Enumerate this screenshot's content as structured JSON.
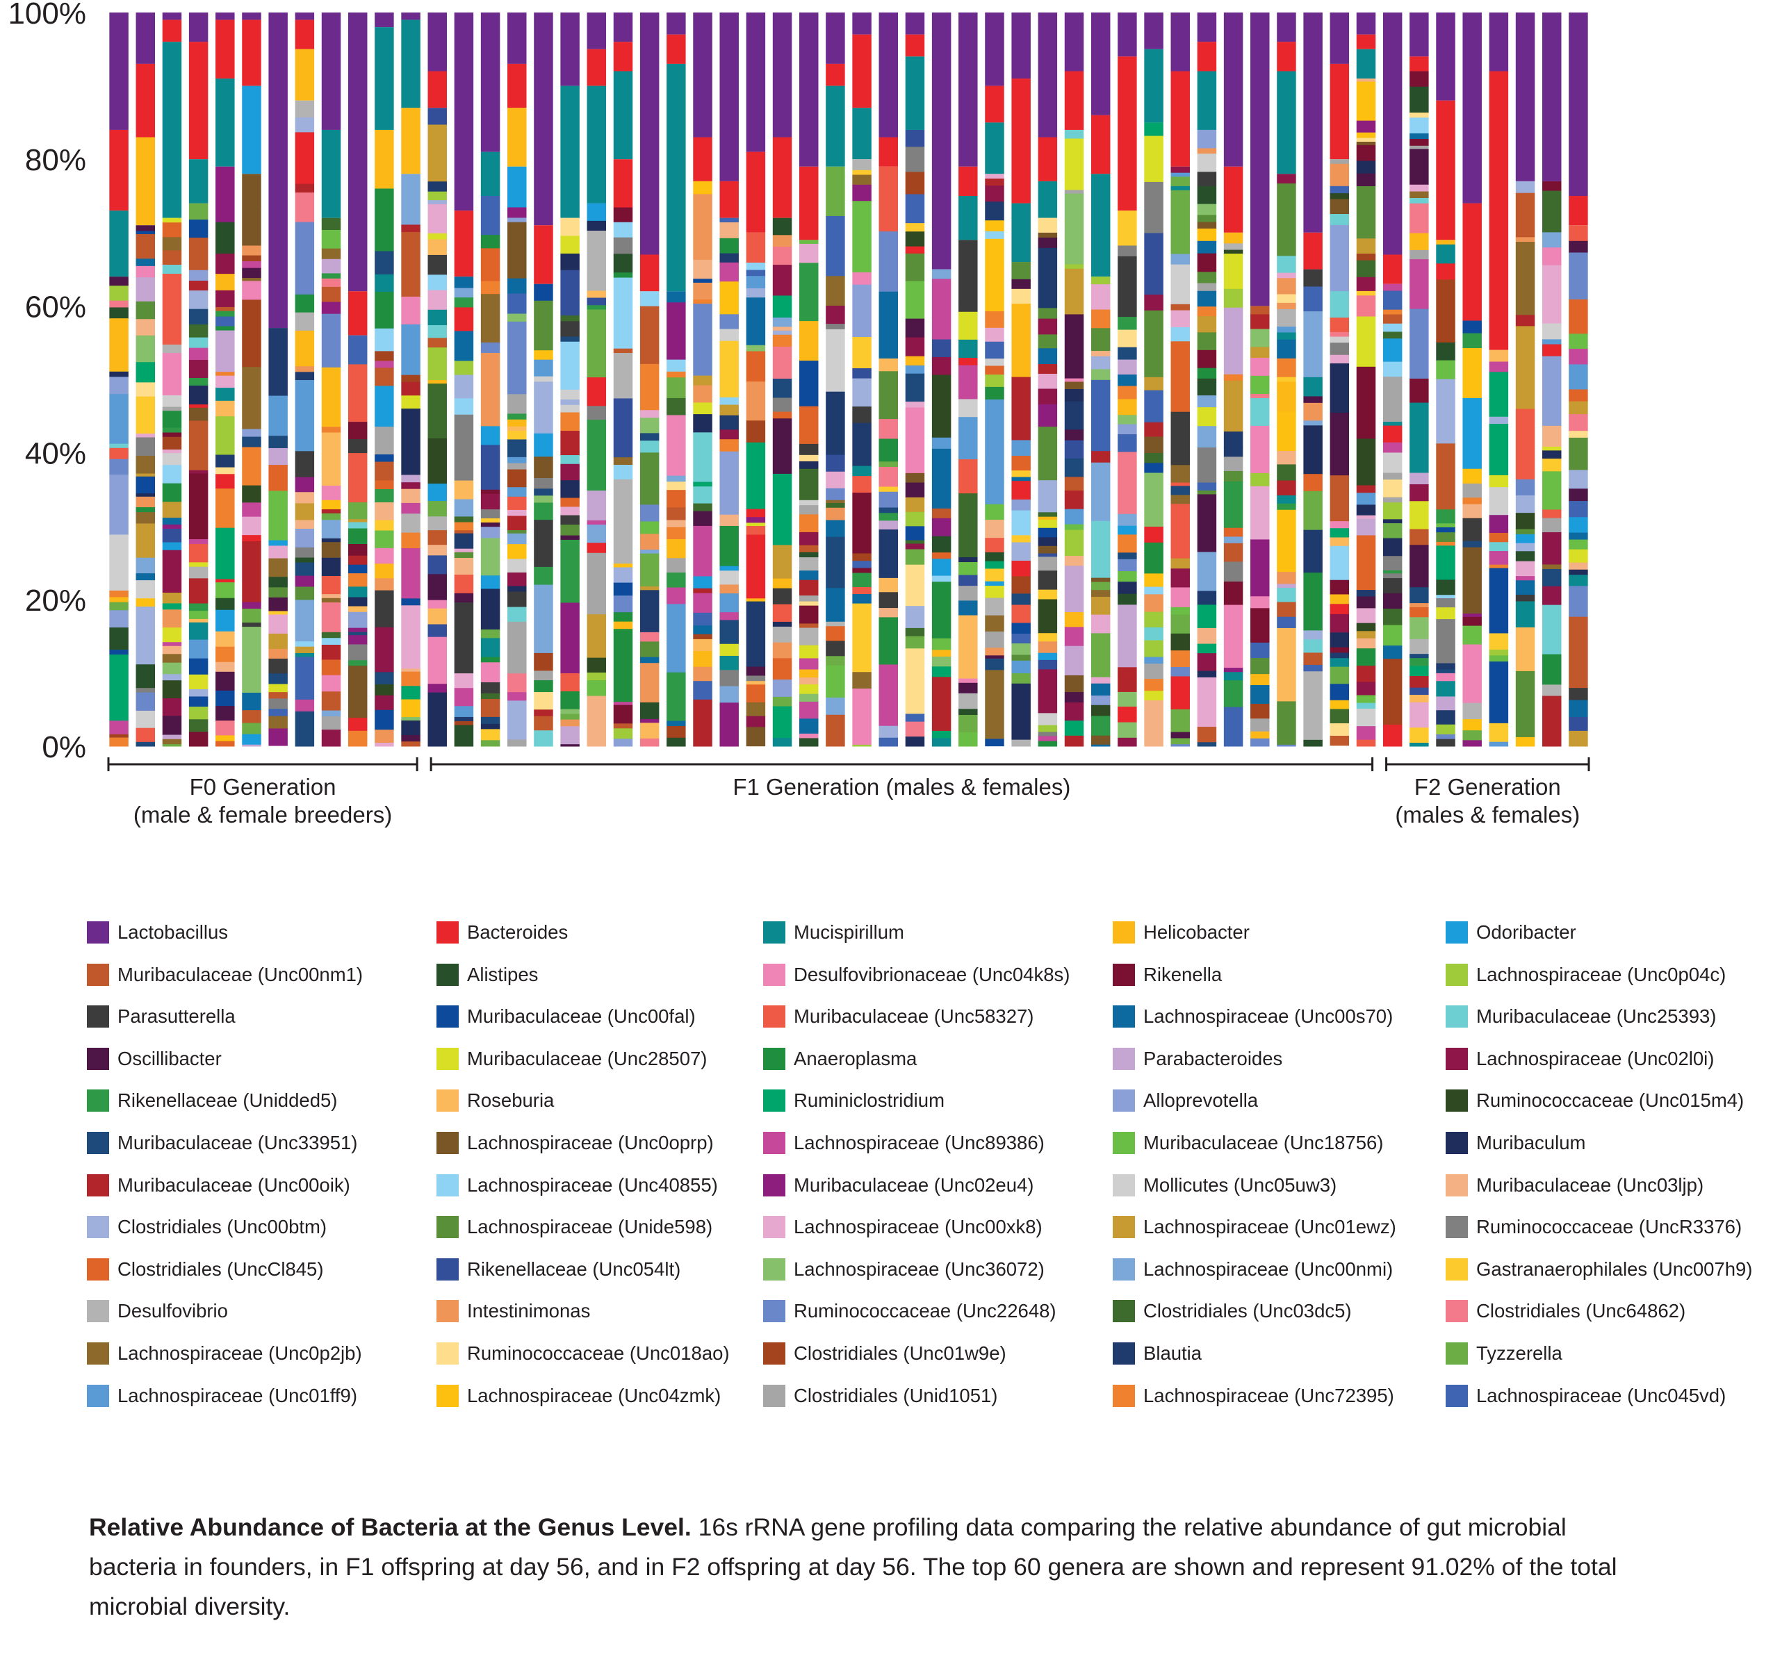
{
  "chart_data": {
    "type": "bar",
    "stacked": true,
    "title": "Relative Abundance of Bacteria at the Genus Level.",
    "xlabel": "",
    "ylabel": "",
    "ylim": [
      0,
      100
    ],
    "y_ticks": [
      "0%",
      "20%",
      "40%",
      "60%",
      "80%",
      "100%"
    ],
    "groups": [
      {
        "line1": "F0 Generation",
        "line2": "(male & female breeders)",
        "n_samples": 12
      },
      {
        "line1": "F1 Generation (males & females)",
        "line2": "",
        "n_samples": 36
      },
      {
        "line1": "F2 Generation",
        "line2": "(males & females)",
        "n_samples": 8
      }
    ],
    "n_samples": 56,
    "series": [
      {
        "name": "Lactobacillus",
        "color": "#6c2a8c"
      },
      {
        "name": "Bacteroides",
        "color": "#e8262b"
      },
      {
        "name": "Mucispirillum",
        "color": "#0a8a8e"
      },
      {
        "name": "Helicobacter",
        "color": "#fbb816"
      },
      {
        "name": "Odoribacter",
        "color": "#1b9ddb"
      },
      {
        "name": "Muribaculaceae (Unc00nm1)",
        "color": "#c0582b"
      },
      {
        "name": "Alistipes",
        "color": "#264f2a"
      },
      {
        "name": "Desulfovibrionaceae (Unc04k8s)",
        "color": "#ef84b6"
      },
      {
        "name": "Rikenella",
        "color": "#7a1032"
      },
      {
        "name": "Lachnospiraceae (Unc0p04c)",
        "color": "#9fcb3b"
      },
      {
        "name": "Parasutterella",
        "color": "#3c3c3c"
      },
      {
        "name": "Muribaculaceae (Unc00fal)",
        "color": "#0e4a9c"
      },
      {
        "name": "Muribaculaceae (Unc58327)",
        "color": "#ee5a45"
      },
      {
        "name": "Lachnospiraceae (Unc00s70)",
        "color": "#0c6aa1"
      },
      {
        "name": "Muribaculaceae (Unc25393)",
        "color": "#6ecfd2"
      },
      {
        "name": "Oscillibacter",
        "color": "#4e1547"
      },
      {
        "name": "Muribaculaceae (Unc28507)",
        "color": "#d9df24"
      },
      {
        "name": "Anaeroplasma",
        "color": "#1f8e3e"
      },
      {
        "name": "Parabacteroides",
        "color": "#c5a6d2"
      },
      {
        "name": "Lachnospiraceae (Unc02l0i)",
        "color": "#8e1648"
      },
      {
        "name": "Rikenellaceae (Unidded5)",
        "color": "#2e9a47"
      },
      {
        "name": "Roseburia",
        "color": "#fbb95c"
      },
      {
        "name": "Ruminiclostridium",
        "color": "#00a56b"
      },
      {
        "name": "Alloprevotella",
        "color": "#8aa0d6"
      },
      {
        "name": "Ruminococcaceae (Unc015m4)",
        "color": "#2f4a22"
      },
      {
        "name": "Muribaculaceae (Unc33951)",
        "color": "#1d4a7a"
      },
      {
        "name": "Lachnospiraceae (Unc0oprp)",
        "color": "#7a5626"
      },
      {
        "name": "Lachnospiraceae (Unc89386)",
        "color": "#c5489b"
      },
      {
        "name": "Muribaculaceae (Unc18756)",
        "color": "#6abd45"
      },
      {
        "name": "Muribaculum",
        "color": "#1f2d5c"
      },
      {
        "name": "Muribaculaceae (Unc00oik)",
        "color": "#b2252a"
      },
      {
        "name": "Lachnospiraceae (Unc40855)",
        "color": "#8fd3f4"
      },
      {
        "name": "Muribaculaceae (Unc02eu4)",
        "color": "#8e1e7e"
      },
      {
        "name": "Mollicutes (Unc05uw3)",
        "color": "#cfcfcf"
      },
      {
        "name": "Muribaculaceae (Unc03ljp)",
        "color": "#f4b183"
      },
      {
        "name": "Clostridiales (Unc00btm)",
        "color": "#9fb0dc"
      },
      {
        "name": "Lachnospiraceae (Unide598)",
        "color": "#5a8f3a"
      },
      {
        "name": "Lachnospiraceae (Unc00xk8)",
        "color": "#e7a8cf"
      },
      {
        "name": "Lachnospiraceae (Unc01ewz)",
        "color": "#c79a32"
      },
      {
        "name": "Ruminococcaceae (UncR3376)",
        "color": "#808080"
      },
      {
        "name": "Clostridiales (UncCl845)",
        "color": "#e06428"
      },
      {
        "name": "Rikenellaceae (Unc054lt)",
        "color": "#344f9a"
      },
      {
        "name": "Lachnospiraceae (Unc36072)",
        "color": "#86c06a"
      },
      {
        "name": "Lachnospiraceae (Unc00nmi)",
        "color": "#7ba7d9"
      },
      {
        "name": "Gastranaerophilales (Unc007h9)",
        "color": "#fdca2e"
      },
      {
        "name": "Desulfovibrio",
        "color": "#b3b3b3"
      },
      {
        "name": "Intestinimonas",
        "color": "#f09558"
      },
      {
        "name": "Ruminococcaceae (Unc22648)",
        "color": "#6a88c9"
      },
      {
        "name": "Clostridiales (Unc03dc5)",
        "color": "#3d6b2d"
      },
      {
        "name": "Clostridiales (Unc64862)",
        "color": "#f27a8a"
      },
      {
        "name": "Lachnospiraceae (Unc0p2jb)",
        "color": "#8d6a2c"
      },
      {
        "name": "Ruminococcaceae (Unc018ao)",
        "color": "#fedd8c"
      },
      {
        "name": "Clostridiales (Unc01w9e)",
        "color": "#a3441e"
      },
      {
        "name": "Blautia",
        "color": "#1f3a6c"
      },
      {
        "name": "Tyzzerella",
        "color": "#6cae45"
      },
      {
        "name": "Lachnospiraceae (Unc01ff9)",
        "color": "#5b9bd5"
      },
      {
        "name": "Lachnospiraceae (Unc04zmk)",
        "color": "#fec010"
      },
      {
        "name": "Clostridiales (Unid1051)",
        "color": "#a6a6a6"
      },
      {
        "name": "Lachnospiraceae (Unc72395)",
        "color": "#f0812f"
      },
      {
        "name": "Lachnospiraceae (Unc045vd)",
        "color": "#3f64b1"
      }
    ],
    "dominant_top_segments": [
      {
        "sample": 1,
        "Lactobacillus": 16,
        "Bacteroides": 11,
        "Mucispirillum": 9
      },
      {
        "sample": 2,
        "Lactobacillus": 7,
        "Bacteroides": 10,
        "Helicobacter": 12
      },
      {
        "sample": 3,
        "Lactobacillus": 1,
        "Bacteroides": 3,
        "Mucispirillum": 24
      },
      {
        "sample": 4,
        "Lactobacillus": 4,
        "Bacteroides": 16,
        "Mucispirillum": 6
      },
      {
        "sample": 5,
        "Lactobacillus": 1,
        "Bacteroides": 8,
        "Mucispirillum": 12
      },
      {
        "sample": 6,
        "Lactobacillus": 1,
        "Bacteroides": 9,
        "Odoribacter": 12
      },
      {
        "sample": 7,
        "Lactobacillus": 43
      },
      {
        "sample": 8,
        "Lactobacillus": 1,
        "Bacteroides": 4,
        "Helicobacter": 7
      },
      {
        "sample": 9,
        "Lactobacillus": 16,
        "Mucispirillum": 12
      },
      {
        "sample": 10,
        "Lactobacillus": 38,
        "Bacteroides": 6
      },
      {
        "sample": 11,
        "Lactobacillus": 2,
        "Mucispirillum": 14,
        "Helicobacter": 8
      },
      {
        "sample": 12,
        "Lactobacillus": 1,
        "Mucispirillum": 12,
        "Helicobacter": 9
      },
      {
        "sample": 13,
        "Lactobacillus": 8,
        "Bacteroides": 5
      },
      {
        "sample": 14,
        "Lactobacillus": 27,
        "Bacteroides": 9
      },
      {
        "sample": 15,
        "Lactobacillus": 19,
        "Mucispirillum": 6
      },
      {
        "sample": 16,
        "Lactobacillus": 7,
        "Bacteroides": 6,
        "Helicobacter": 8
      },
      {
        "sample": 17,
        "Lactobacillus": 29,
        "Bacteroides": 8
      },
      {
        "sample": 18,
        "Lactobacillus": 10,
        "Mucispirillum": 18
      },
      {
        "sample": 19,
        "Lactobacillus": 5,
        "Bacteroides": 5,
        "Mucispirillum": 16
      },
      {
        "sample": 20,
        "Lactobacillus": 4,
        "Bacteroides": 4,
        "Mucispirillum": 12
      },
      {
        "sample": 21,
        "Lactobacillus": 33,
        "Bacteroides": 5
      },
      {
        "sample": 22,
        "Lactobacillus": 3,
        "Bacteroides": 4,
        "Mucispirillum": 31
      },
      {
        "sample": 23,
        "Lactobacillus": 17,
        "Bacteroides": 6
      },
      {
        "sample": 24,
        "Lactobacillus": 23,
        "Bacteroides": 5
      },
      {
        "sample": 25,
        "Lactobacillus": 19,
        "Bacteroides": 11
      },
      {
        "sample": 26,
        "Lactobacillus": 17,
        "Bacteroides": 11
      },
      {
        "sample": 27,
        "Lactobacillus": 21,
        "Bacteroides": 10
      },
      {
        "sample": 28,
        "Lactobacillus": 7,
        "Bacteroides": 3,
        "Mucispirillum": 11
      },
      {
        "sample": 29,
        "Lactobacillus": 3,
        "Bacteroides": 10,
        "Mucispirillum": 7
      },
      {
        "sample": 30,
        "Lactobacillus": 17,
        "Bacteroides": 4
      },
      {
        "sample": 31,
        "Lactobacillus": 3,
        "Bacteroides": 3,
        "Mucispirillum": 10
      },
      {
        "sample": 32,
        "Lactobacillus": 35
      },
      {
        "sample": 33,
        "Lactobacillus": 21,
        "Bacteroides": 4,
        "Mucispirillum": 6
      },
      {
        "sample": 34,
        "Lactobacillus": 10,
        "Bacteroides": 5,
        "Mucispirillum": 7
      },
      {
        "sample": 35,
        "Lactobacillus": 9,
        "Bacteroides": 17,
        "Mucispirillum": 8
      },
      {
        "sample": 36,
        "Lactobacillus": 17,
        "Bacteroides": 6,
        "Mucispirillum": 5
      },
      {
        "sample": 37,
        "Lactobacillus": 8,
        "Bacteroides": 8
      },
      {
        "sample": 38,
        "Lactobacillus": 14,
        "Bacteroides": 8,
        "Mucispirillum": 14
      },
      {
        "sample": 39,
        "Lactobacillus": 6,
        "Bacteroides": 21
      },
      {
        "sample": 40,
        "Lactobacillus": 5,
        "Mucispirillum": 10
      },
      {
        "sample": 41,
        "Lactobacillus": 8,
        "Bacteroides": 13
      },
      {
        "sample": 42,
        "Lactobacillus": 4,
        "Bacteroides": 4,
        "Mucispirillum": 8
      },
      {
        "sample": 43,
        "Lactobacillus": 21,
        "Bacteroides": 9
      },
      {
        "sample": 44,
        "Lactobacillus": 40
      },
      {
        "sample": 45,
        "Lactobacillus": 4,
        "Bacteroides": 4,
        "Mucispirillum": 14
      },
      {
        "sample": 46,
        "Lactobacillus": 30,
        "Bacteroides": 5
      },
      {
        "sample": 47,
        "Lactobacillus": 7,
        "Bacteroides": 13
      },
      {
        "sample": 48,
        "Lactobacillus": 3,
        "Bacteroides": 2,
        "Mucispirillum": 4
      },
      {
        "sample": 49,
        "Lactobacillus": 33,
        "Bacteroides": 4
      },
      {
        "sample": 50,
        "Lactobacillus": 6,
        "Bacteroides": 2
      },
      {
        "sample": 51,
        "Lactobacillus": 12,
        "Bacteroides": 19
      },
      {
        "sample": 52,
        "Lactobacillus": 26,
        "Bacteroides": 16
      },
      {
        "sample": 53,
        "Lactobacillus": 8,
        "Bacteroides": 38
      },
      {
        "sample": 54,
        "Lactobacillus": 23
      },
      {
        "sample": 55,
        "Lactobacillus": 23
      },
      {
        "sample": 56,
        "Lactobacillus": 25,
        "Bacteroides": 4
      }
    ]
  },
  "caption": {
    "bold": "Relative Abundance of Bacteria at the Genus Level.",
    "text": " 16s rRNA gene profiling data comparing the relative abundance of gut microbial bacteria in founders, in F1 offspring at day 56, and in F2 offspring at day 56. The top 60 genera are shown and represent 91.02% of the total microbial diversity."
  }
}
